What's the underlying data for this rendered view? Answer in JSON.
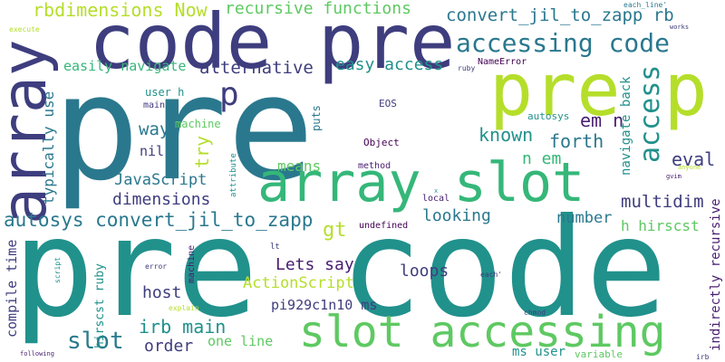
{
  "colors": {
    "background": "#ffffff",
    "dark_navy": "#3e3d7e",
    "teal_dark": "#2a788e",
    "teal": "#21918c",
    "green": "#35b779",
    "green_light": "#5ec962",
    "lime": "#b5de2b",
    "purple": "#481d6f",
    "purple_dark": "#440154"
  },
  "words": [
    {
      "text": "pre",
      "color": "#2a788e"
    },
    {
      "text": "pre code",
      "color": "#21918c"
    },
    {
      "text": "code pre",
      "color": "#3e3d7e"
    },
    {
      "text": "pre p",
      "color": "#b5de2b"
    },
    {
      "text": "array slot",
      "color": "#35b779"
    },
    {
      "text": "array",
      "color": "#3e3d7e"
    },
    {
      "text": "slot accessing",
      "color": "#5ec962"
    },
    {
      "text": "accessing code",
      "color": "#2a788e"
    },
    {
      "text": "convert_jil_to_zapp rb",
      "color": "#2a788e"
    },
    {
      "text": "recursive functions",
      "color": "#5ec962"
    },
    {
      "text": "rbdimensions Now",
      "color": "#b5de2b"
    },
    {
      "text": "autosys convert_jil_to_zapp",
      "color": "#2a788e"
    },
    {
      "text": "alternative",
      "color": "#3e3d7e"
    },
    {
      "text": "easy access",
      "color": "#21918c"
    },
    {
      "text": "easily navigate",
      "color": "#35b779"
    },
    {
      "text": "p",
      "color": "#3e3d7e"
    },
    {
      "text": "access",
      "color": "#21918c"
    },
    {
      "text": "em n",
      "color": "#481d6f"
    },
    {
      "text": "known",
      "color": "#21918c"
    },
    {
      "text": "forth",
      "color": "#2a788e"
    },
    {
      "text": "eval",
      "color": "#3e3d7e"
    },
    {
      "text": "navigate back",
      "color": "#21918c"
    },
    {
      "text": "multidim",
      "color": "#3e3d7e"
    },
    {
      "text": "n em",
      "color": "#35b779"
    },
    {
      "text": "way",
      "color": "#2a788e"
    },
    {
      "text": "nil",
      "color": "#3e3d7e"
    },
    {
      "text": "try",
      "color": "#b5de2b"
    },
    {
      "text": "machine",
      "color": "#5ec962"
    },
    {
      "text": "means",
      "color": "#5ec962"
    },
    {
      "text": "JavaScript",
      "color": "#2a788e"
    },
    {
      "text": "dimensions",
      "color": "#3e3d7e"
    },
    {
      "text": "typically use",
      "color": "#2a788e"
    },
    {
      "text": "gt",
      "color": "#b5de2b"
    },
    {
      "text": "looking",
      "color": "#2a788e"
    },
    {
      "text": "number",
      "color": "#2a788e"
    },
    {
      "text": "h hirscst",
      "color": "#5ec962"
    },
    {
      "text": "Lets say",
      "color": "#481d6f"
    },
    {
      "text": "loops",
      "color": "#3e3d7e"
    },
    {
      "text": "ActionScript",
      "color": "#b5de2b"
    },
    {
      "text": "host",
      "color": "#3e3d7e"
    },
    {
      "text": "pi929c1n10 ms",
      "color": "#3e3d7e"
    },
    {
      "text": "irb main",
      "color": "#21918c"
    },
    {
      "text": "slot",
      "color": "#2a788e"
    },
    {
      "text": "order",
      "color": "#3e3d7e"
    },
    {
      "text": "one line",
      "color": "#5ec962"
    },
    {
      "text": "compile time",
      "color": "#3e3d7e"
    },
    {
      "text": "hirscst ruby",
      "color": "#21918c"
    },
    {
      "text": "indirectly recursive",
      "color": "#481d6f"
    },
    {
      "text": "ms user",
      "color": "#21918c"
    },
    {
      "text": "variable",
      "color": "#5ec962"
    },
    {
      "text": "autosys",
      "color": "#21918c"
    },
    {
      "text": "user h",
      "color": "#21918c"
    },
    {
      "text": "main",
      "color": "#3e3d7e"
    },
    {
      "text": "puts",
      "color": "#2a788e"
    },
    {
      "text": "EOS",
      "color": "#3e3d7e"
    },
    {
      "text": "Object",
      "color": "#440154"
    },
    {
      "text": "method",
      "color": "#481d6f"
    },
    {
      "text": "NameError",
      "color": "#440154"
    },
    {
      "text": "ruby",
      "color": "#3e3d7e"
    },
    {
      "text": "each_line'",
      "color": "#2a788e"
    },
    {
      "text": "works",
      "color": "#3e3d7e"
    },
    {
      "text": "execute",
      "color": "#b5de2b"
    },
    {
      "text": "undefined",
      "color": "#440154"
    },
    {
      "text": "attribute",
      "color": "#21918c"
    },
    {
      "text": "local",
      "color": "#481d6f"
    },
    {
      "text": "x",
      "color": "#21918c"
    },
    {
      "text": "lt",
      "color": "#3e3d7e"
    },
    {
      "text": "machine",
      "color": "#481d6f"
    },
    {
      "text": "error",
      "color": "#3e3d7e"
    },
    {
      "text": "explain",
      "color": "#b5de2b"
    },
    {
      "text": "script",
      "color": "#21918c"
    },
    {
      "text": "following",
      "color": "#481d6f"
    },
    {
      "text": "each'",
      "color": "#3e3d7e"
    },
    {
      "text": "chmod",
      "color": "#3e3d7e"
    },
    {
      "text": "anyone",
      "color": "#b5de2b"
    },
    {
      "text": "gvim",
      "color": "#481d6f"
    },
    {
      "text": "irb",
      "color": "#3e3d7e"
    }
  ]
}
